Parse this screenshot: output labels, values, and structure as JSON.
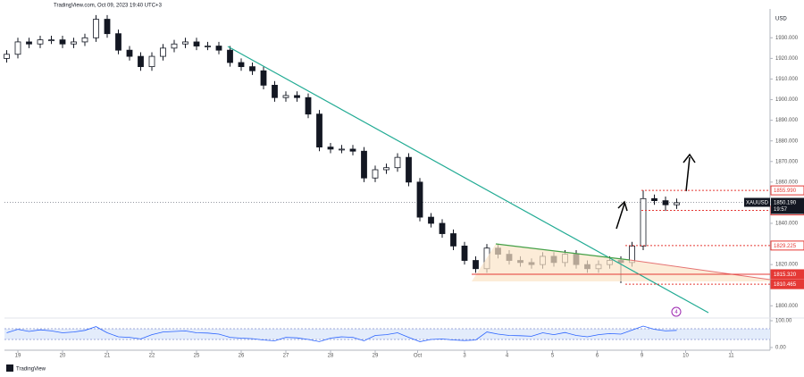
{
  "chart_data": {
    "type": "candlestick",
    "header": "TradingView.com, Oct 09, 2023 19:40 UTC+3",
    "brand": "TradingView",
    "currency": "USD",
    "symbol": "XAUUSD",
    "countdown": "19:57",
    "marker": "4",
    "up_color": "#131722",
    "down_color": "#131722",
    "x": [
      -0.25,
      0,
      0.25,
      0.5,
      0.75,
      1,
      1.25,
      1.5,
      1.75,
      2,
      2.25,
      2.5,
      2.75,
      3,
      3.25,
      3.5,
      3.75,
      4,
      4.25,
      4.5,
      4.75,
      5,
      5.25,
      5.5,
      5.75,
      6,
      6.25,
      6.5,
      6.75,
      7,
      7.25,
      7.5,
      7.75,
      8,
      8.25,
      8.5,
      8.75,
      9,
      9.25,
      9.5,
      9.75,
      10,
      10.25,
      10.5,
      10.75,
      11,
      11.25,
      11.5,
      11.75,
      12,
      12.25,
      12.5,
      12.75,
      13,
      13.25,
      13.5,
      13.75,
      14,
      14.25,
      14.5,
      14.75
    ],
    "open": [
      1920,
      1922,
      1928,
      1927,
      1929,
      1929,
      1927,
      1928,
      1930,
      1939,
      1932,
      1924,
      1921,
      1916,
      1921,
      1925,
      1927,
      1928,
      1926,
      1926,
      1924,
      1918,
      1916,
      1914,
      1907,
      1901,
      1902,
      1901,
      1893,
      1877,
      1876,
      1876,
      1875,
      1862,
      1866,
      1867,
      1872,
      1860,
      1843,
      1840,
      1835,
      1829,
      1822,
      1818,
      1828,
      1825,
      1822,
      1821,
      1820,
      1824,
      1821,
      1825,
      1820,
      1818,
      1820,
      1822,
      1821,
      1829,
      1852,
      1851,
      1849
    ],
    "high": [
      1924,
      1930,
      1930,
      1931,
      1931,
      1931,
      1930,
      1932,
      1941,
      1941,
      1934,
      1926,
      1923,
      1923,
      1927,
      1929,
      1930,
      1930,
      1928,
      1928,
      1926,
      1920,
      1918,
      1916,
      1909,
      1904,
      1904,
      1903,
      1895,
      1879,
      1878,
      1878,
      1877,
      1868,
      1869,
      1874,
      1874,
      1862,
      1845,
      1842,
      1837,
      1831,
      1824,
      1830,
      1830,
      1827,
      1824,
      1823,
      1826,
      1826,
      1827,
      1827,
      1822,
      1822,
      1824,
      1824,
      1831,
      1856,
      1854,
      1853,
      1852
    ],
    "low": [
      1918,
      1920,
      1925,
      1925,
      1927,
      1925,
      1925,
      1926,
      1928,
      1930,
      1922,
      1919,
      1914,
      1914,
      1919,
      1923,
      1925,
      1924,
      1924,
      1922,
      1916,
      1914,
      1912,
      1905,
      1899,
      1899,
      1899,
      1891,
      1875,
      1874,
      1874,
      1873,
      1860,
      1860,
      1864,
      1865,
      1858,
      1841,
      1838,
      1833,
      1827,
      1820,
      1816,
      1816,
      1823,
      1820,
      1819,
      1818,
      1818,
      1819,
      1819,
      1818,
      1816,
      1816,
      1818,
      1811,
      1819,
      1827,
      1849,
      1846,
      1847
    ],
    "close": [
      1922,
      1928,
      1927,
      1929,
      1929,
      1927,
      1928,
      1930,
      1939,
      1932,
      1924,
      1921,
      1916,
      1921,
      1925,
      1927,
      1928,
      1926,
      1926,
      1924,
      1918,
      1916,
      1914,
      1907,
      1901,
      1902,
      1901,
      1893,
      1877,
      1876,
      1876,
      1875,
      1862,
      1866,
      1867,
      1872,
      1860,
      1843,
      1840,
      1835,
      1829,
      1822,
      1818,
      1828,
      1825,
      1822,
      1821,
      1820,
      1824,
      1821,
      1825,
      1820,
      1818,
      1820,
      1822,
      1821,
      1829,
      1852,
      1851,
      1849,
      1850
    ],
    "rsi": [
      55,
      68,
      60,
      66,
      62,
      55,
      58,
      64,
      78,
      55,
      40,
      38,
      32,
      48,
      58,
      60,
      62,
      55,
      54,
      50,
      38,
      35,
      33,
      28,
      25,
      38,
      36,
      30,
      22,
      35,
      40,
      38,
      25,
      45,
      48,
      55,
      38,
      22,
      30,
      32,
      28,
      26,
      28,
      58,
      50,
      45,
      44,
      42,
      55,
      48,
      56,
      45,
      40,
      48,
      52,
      50,
      65,
      80,
      68,
      62,
      64
    ],
    "rsi_color": "#2962ff",
    "rsi_ylim": [
      0,
      100
    ],
    "rsi_yticks": [
      {
        "value": 100,
        "label": "100.00"
      },
      {
        "value": 0,
        "label": "0.00"
      }
    ],
    "rsi_band": [
      30,
      70
    ],
    "xlim": [
      -0.3,
      16.84
    ],
    "xticks": [
      {
        "value": 0,
        "label": "19"
      },
      {
        "value": 1,
        "label": "20"
      },
      {
        "value": 2,
        "label": "21"
      },
      {
        "value": 3,
        "label": "22"
      },
      {
        "value": 4,
        "label": "25"
      },
      {
        "value": 5,
        "label": "26"
      },
      {
        "value": 6,
        "label": "27"
      },
      {
        "value": 7,
        "label": "28"
      },
      {
        "value": 8,
        "label": "29"
      },
      {
        "value": 8.95,
        "label": "Oct"
      },
      {
        "value": 10,
        "label": "3"
      },
      {
        "value": 10.95,
        "label": "4"
      },
      {
        "value": 11.97,
        "label": "5"
      },
      {
        "value": 12.97,
        "label": "6"
      },
      {
        "value": 13.97,
        "label": "9"
      },
      {
        "value": 14.95,
        "label": "10"
      },
      {
        "value": 15.97,
        "label": "11"
      }
    ],
    "ylim": [
      1795.8,
      1944
    ],
    "yticks": [
      {
        "value": 1800,
        "label": "1800.000"
      },
      {
        "value": 1810,
        "label": "1810.000"
      },
      {
        "value": 1820,
        "label": "1820.000"
      },
      {
        "value": 1830,
        "label": "1830.000"
      },
      {
        "value": 1840,
        "label": "1840.000"
      },
      {
        "value": 1850,
        "label": "1850.000"
      },
      {
        "value": 1860,
        "label": "1860.000"
      },
      {
        "value": 1870,
        "label": "1870.000"
      },
      {
        "value": 1880,
        "label": "1880.000"
      },
      {
        "value": 1890,
        "label": "1890.000"
      },
      {
        "value": 1900,
        "label": "1900.000"
      },
      {
        "value": 1910,
        "label": "1910.000"
      },
      {
        "value": 1920,
        "label": "1920.000"
      },
      {
        "value": 1930,
        "label": "1930.000"
      }
    ],
    "last_price": {
      "value": 1850.19,
      "label": "1850.190"
    },
    "levels": [
      {
        "value": 1855.99,
        "label": "1855.990",
        "filled": false
      },
      {
        "value": 1846.26,
        "label": "1846.260",
        "filled": false
      },
      {
        "value": 1829.225,
        "label": "1829.225",
        "filled": false
      },
      {
        "value": 1815.32,
        "label": "1815.320",
        "filled": true
      },
      {
        "value": 1810.465,
        "label": "1810.465",
        "filled": true
      }
    ],
    "level_color": "#e53935"
  }
}
